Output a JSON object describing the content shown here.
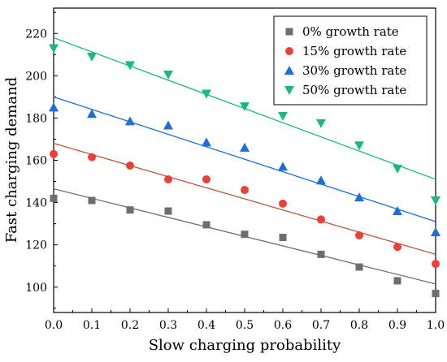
{
  "chart_data": {
    "type": "scatter",
    "xlabel": "Slow charging probability",
    "ylabel": "Fast charging demand",
    "xlim": [
      0,
      1
    ],
    "ylim": [
      88,
      232
    ],
    "x": [
      0.0,
      0.1,
      0.2,
      0.3,
      0.4,
      0.5,
      0.6,
      0.7,
      0.8,
      0.9,
      1.0
    ],
    "x_tick_labels": [
      "0.0",
      "0.1",
      "0.2",
      "0.3",
      "0.4",
      "0.5",
      "0.6",
      "0.7",
      "0.8",
      "0.9",
      "1.0"
    ],
    "y_ticks": [
      100,
      120,
      140,
      160,
      180,
      200,
      220
    ],
    "y_tick_labels": [
      "100",
      "120",
      "140",
      "160",
      "180",
      "200",
      "220"
    ],
    "grid": false,
    "legend_position": "top-right",
    "series": [
      {
        "name": "0% growth rate",
        "marker": "square",
        "color": "#6e6e6e",
        "line_color": "#6e6e6e",
        "values": [
          142,
          141,
          136.5,
          136,
          129.5,
          125,
          123.5,
          115.5,
          109.5,
          103,
          97
        ],
        "fit": [
          146.5,
          101.5
        ]
      },
      {
        "name": "15% growth rate",
        "marker": "circle",
        "color": "#e8403a",
        "line_color": "#b85a3c",
        "values": [
          163,
          161.5,
          157.5,
          151,
          151,
          146,
          139.5,
          132,
          124.5,
          119,
          111
        ],
        "fit": [
          168,
          115.5
        ]
      },
      {
        "name": "30% growth rate",
        "marker": "triangle-up",
        "color": "#1f6fd1",
        "line_color": "#1f6fd1",
        "values": [
          185,
          182,
          178.5,
          176.5,
          168.5,
          166,
          157,
          150.5,
          142.5,
          136,
          126
        ],
        "fit": [
          190,
          131
        ]
      },
      {
        "name": "50% growth rate",
        "marker": "triangle-down",
        "color": "#1fb87a",
        "line_color": "#1fb87a",
        "values": [
          213,
          209,
          205,
          200.5,
          191.5,
          185.5,
          181,
          177.5,
          167,
          156,
          141
        ],
        "fit": [
          218,
          151
        ]
      }
    ]
  }
}
